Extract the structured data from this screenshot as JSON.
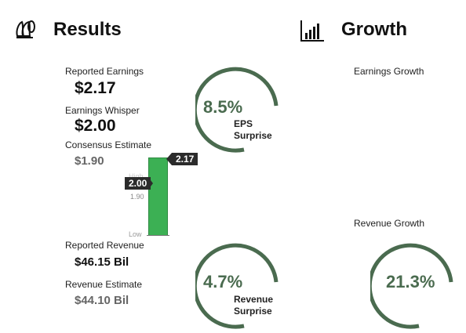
{
  "results": {
    "title": "Results",
    "icon": "money-bag-icon",
    "reported_earnings_label": "Reported Earnings",
    "reported_earnings_value": "$2.17",
    "whisper_label": "Earnings Whisper",
    "whisper_value": "$2.00",
    "consensus_label": "Consensus Estimate",
    "consensus_value": "$1.90",
    "reported_revenue_label": "Reported Revenue",
    "reported_revenue_value": "$46.15 Bil",
    "revenue_estimate_label": "Revenue Estimate",
    "revenue_estimate_value": "$44.10 Bil"
  },
  "bar": {
    "actual_tag": "2.17",
    "whisper_tag": "2.00",
    "consensus_tick": "1.90",
    "high_label": "High",
    "low_label": "Low",
    "color": "#3cb054"
  },
  "eps_gauge": {
    "value": "8.5%",
    "line1": "EPS",
    "line2": "Surprise"
  },
  "revenue_gauge": {
    "value": "4.7%",
    "line1": "Revenue",
    "line2": "Surprise"
  },
  "growth": {
    "title": "Growth",
    "icon": "bar-chart-icon",
    "earnings_growth_label": "Earnings Growth",
    "revenue_growth_label": "Revenue Growth",
    "revenue_growth_value": "21.3%"
  },
  "colors": {
    "gauge": "#4a6b4f"
  }
}
